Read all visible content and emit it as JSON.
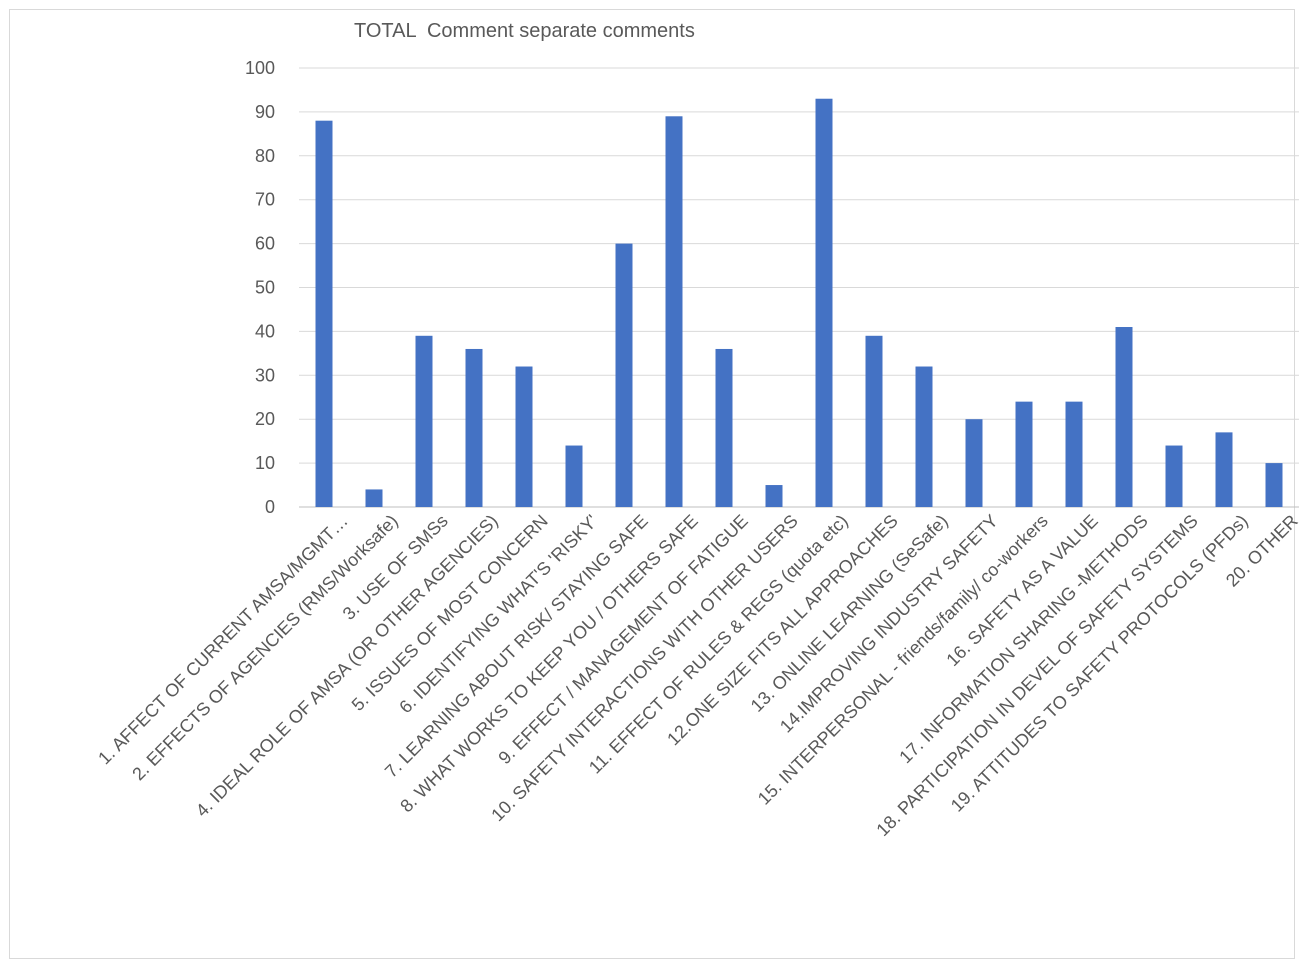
{
  "chart_data": {
    "type": "bar",
    "title": "TOTAL  Comment separate comments",
    "xlabel": "",
    "ylabel": "",
    "ylim": [
      0,
      100
    ],
    "yticks": [
      0,
      10,
      20,
      30,
      40,
      50,
      60,
      70,
      80,
      90,
      100
    ],
    "grid": true,
    "legend": "none",
    "bar_color": "#4472C4",
    "categories": [
      "1. AFFECT OF CURRENT AMSA/MGMT…",
      "2. EFFECTS  OF  AGENCIES (RMS/Worksafe)",
      "3. USE OF SMSs",
      "4. IDEAL ROLE OF AMSA (OR OTHER AGENCIES)",
      "5. ISSUES OF MOST CONCERN",
      "6. IDENTIFYING WHAT'S 'RISKY'",
      "7. LEARNING ABOUT RISK/ STAYING SAFE",
      "8. WHAT WORKS TO KEEP YOU / OTHERS SAFE",
      "9. EFFECT / MANAGEMENT OF FATIGUE",
      "10. SAFETY INTERACTIONS WITH OTHER USERS",
      "11. EFFECT OF  RULES & REGS (quota etc)",
      "12.ONE SIZE FITS ALL APPROACHES",
      "13. ONLINE LEARNING (SeSafe)",
      "14.IMPROVING INDUSTRY  SAFETY",
      "15. INTERPERSONAL - friends/family/ co-workers",
      "16. SAFETY AS A VALUE",
      "17. INFORMATION SHARING -METHODS",
      "18. PARTICIPATION IN DEVEL OF SAFETY SYSTEMS",
      "19. ATTITUDES TO SAFETY PROTOCOLS (PFDs)",
      "20. OTHER"
    ],
    "values": [
      88,
      4,
      39,
      36,
      32,
      14,
      60,
      89,
      36,
      5,
      93,
      39,
      32,
      20,
      24,
      24,
      41,
      14,
      17,
      10
    ]
  }
}
